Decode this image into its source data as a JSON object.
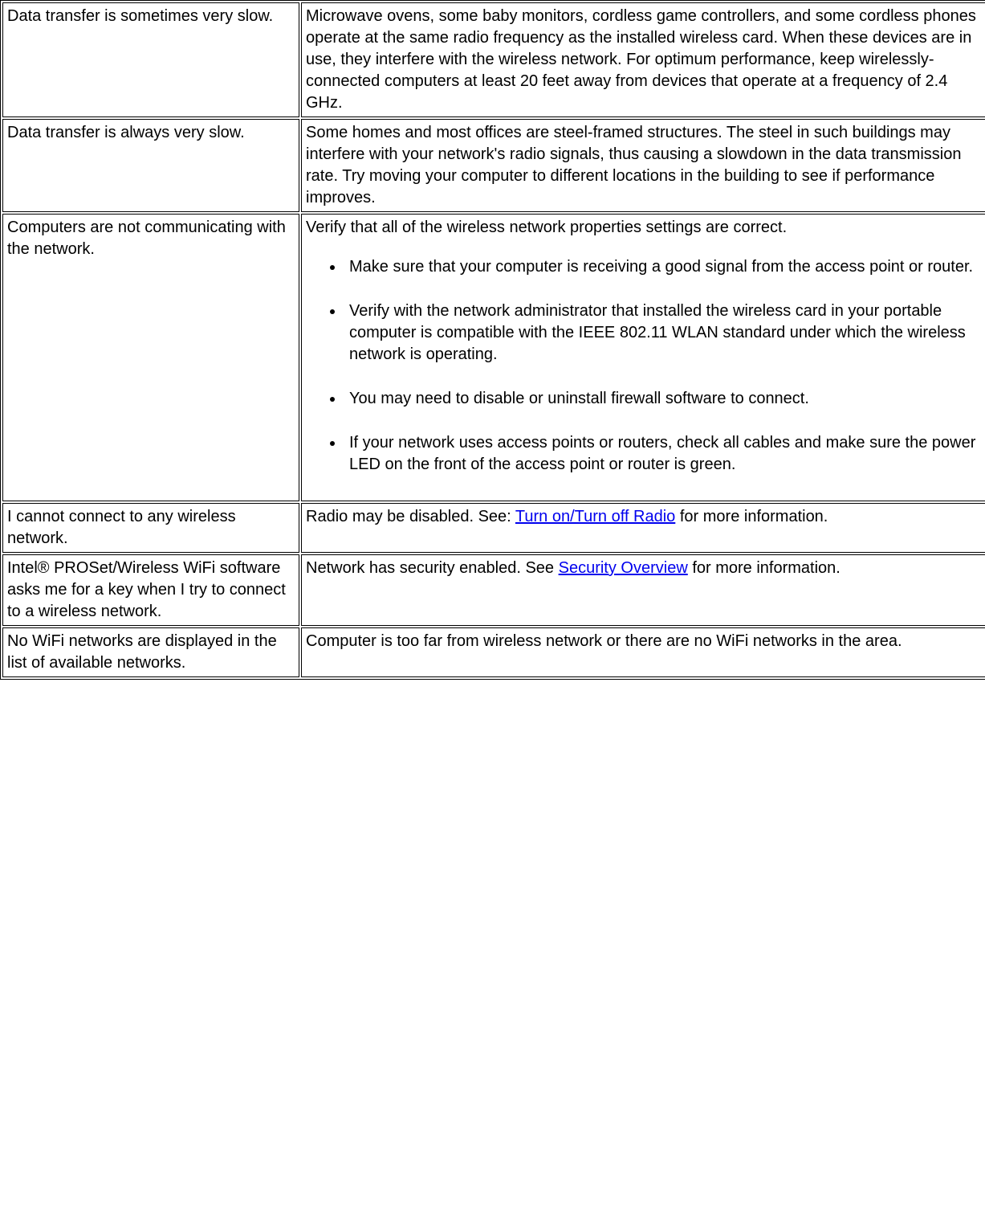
{
  "rows": [
    {
      "problem": "Data transfer is sometimes very slow.",
      "solution": "Microwave ovens, some baby monitors, cordless game controllers, and some cordless phones operate at the same radio frequency as the installed wireless card. When these devices are in use, they interfere with the wireless network. For optimum performance, keep wirelessly-connected computers at least 20 feet away from devices that operate at a frequency of 2.4 GHz."
    },
    {
      "problem": "Data transfer is always very slow.",
      "solution": "Some homes and most offices are steel-framed structures. The steel in such buildings may interfere with your network's radio signals, thus causing a slowdown in the data transmission rate. Try moving your computer to different locations in the building to see if performance improves."
    },
    {
      "problem": "Computers are not communicating with the network.",
      "solution_intro": "Verify that all of the wireless network properties settings are correct.",
      "bullets": [
        "Make sure that your computer is receiving a good signal from the access point or router.",
        "Verify with the network administrator that installed the wireless card in your portable computer is compatible with the IEEE 802.11 WLAN standard under which the wireless network is operating.",
        "You may need to disable or uninstall firewall software to connect.",
        "If your network uses access points or routers, check all cables and make sure the power LED on the front of the access point or router is green."
      ]
    },
    {
      "problem": "I cannot connect to any wireless network.",
      "solution_before": "Radio may be disabled. See: ",
      "link": "Turn on/Turn off Radio",
      "solution_after": " for more information."
    },
    {
      "problem": "Intel® PROSet/Wireless WiFi software asks me for a key when I try to connect to a wireless network.",
      "solution_before": "Network has security enabled. See ",
      "link": "Security Overview",
      "solution_after": " for more information."
    },
    {
      "problem": "No WiFi networks are displayed in the list of available networks.",
      "solution": "Computer is too far from wireless network or there are no WiFi networks in the area."
    }
  ],
  "link_color": "#0000ee"
}
